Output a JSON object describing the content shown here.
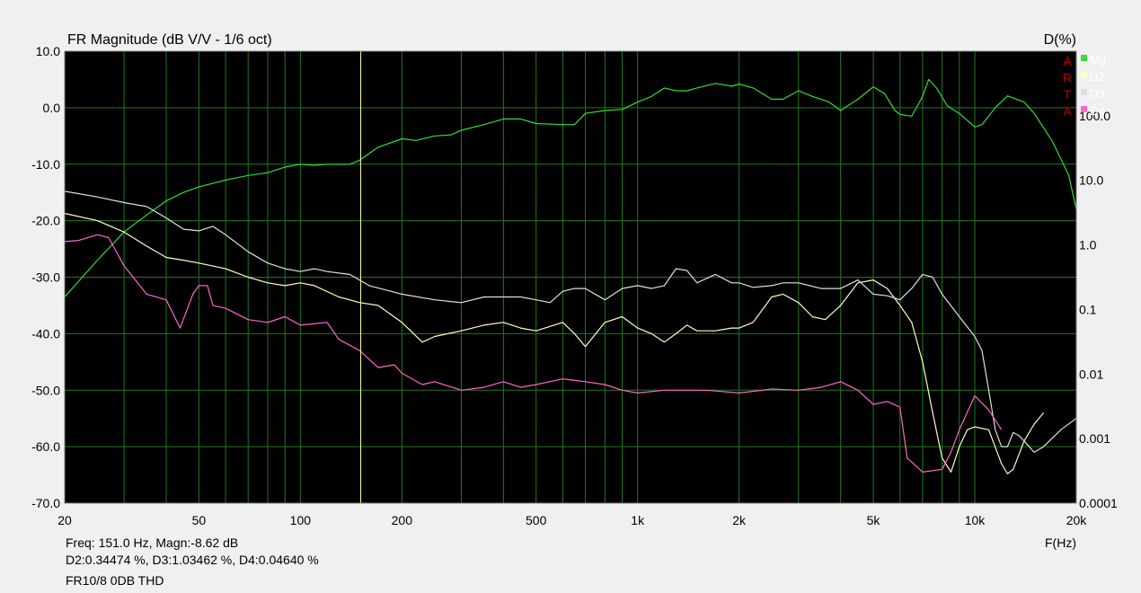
{
  "chart_data": {
    "type": "line",
    "title": "FR Magnitude (dB V/V - 1/6 oct)",
    "right_axis_label": "D(%)",
    "xlabel": "F(Hz)",
    "x_scale": "log",
    "xlim": [
      20,
      20000
    ],
    "ylim_left": [
      -70,
      10
    ],
    "ylim_right": [
      0.0001,
      1000
    ],
    "y_right_scale": "log",
    "x_ticks": [
      {
        "value": 20,
        "label": "20"
      },
      {
        "value": 50,
        "label": "50"
      },
      {
        "value": 100,
        "label": "100"
      },
      {
        "value": 200,
        "label": "200"
      },
      {
        "value": 500,
        "label": "500"
      },
      {
        "value": 1000,
        "label": "1k"
      },
      {
        "value": 2000,
        "label": "2k"
      },
      {
        "value": 5000,
        "label": "5k"
      },
      {
        "value": 10000,
        "label": "10k"
      },
      {
        "value": 20000,
        "label": "20k"
      }
    ],
    "y_left_ticks": [
      {
        "value": 10,
        "label": "10.0"
      },
      {
        "value": 0,
        "label": "0.0"
      },
      {
        "value": -10,
        "label": "-10.0"
      },
      {
        "value": -20,
        "label": "-20.0"
      },
      {
        "value": -30,
        "label": "-30.0"
      },
      {
        "value": -40,
        "label": "-40.0"
      },
      {
        "value": -50,
        "label": "-50.0"
      },
      {
        "value": -60,
        "label": "-60.0"
      },
      {
        "value": -70,
        "label": "-70.0"
      }
    ],
    "y_right_ticks": [
      {
        "value": 100,
        "label": "100.0"
      },
      {
        "value": 10,
        "label": "10.0"
      },
      {
        "value": 1,
        "label": "1.0"
      },
      {
        "value": 0.1,
        "label": "0.1"
      },
      {
        "value": 0.01,
        "label": "0.01"
      },
      {
        "value": 0.001,
        "label": "0.001"
      },
      {
        "value": 0.0001,
        "label": "0.0001"
      }
    ],
    "cursor_freq": 151,
    "grid": true,
    "background": "#000000",
    "grid_color": "#1f7a1f",
    "legend_placement": "top-right",
    "arta_logo": [
      "A",
      "R",
      "T",
      "A"
    ],
    "series": [
      {
        "name": "Mg",
        "color": "#33dd33",
        "points": [
          [
            20,
            -33.5
          ],
          [
            25,
            -27
          ],
          [
            30,
            -22
          ],
          [
            35,
            -19
          ],
          [
            40,
            -16.5
          ],
          [
            45,
            -15
          ],
          [
            50,
            -14
          ],
          [
            60,
            -12.8
          ],
          [
            70,
            -12
          ],
          [
            80,
            -11.5
          ],
          [
            90,
            -10.5
          ],
          [
            100,
            -10
          ],
          [
            110,
            -10.2
          ],
          [
            120,
            -10
          ],
          [
            140,
            -10
          ],
          [
            150,
            -9.3
          ],
          [
            170,
            -7
          ],
          [
            200,
            -5.5
          ],
          [
            220,
            -5.8
          ],
          [
            250,
            -5
          ],
          [
            280,
            -4.8
          ],
          [
            300,
            -4
          ],
          [
            350,
            -3
          ],
          [
            400,
            -2
          ],
          [
            450,
            -2
          ],
          [
            500,
            -2.8
          ],
          [
            600,
            -3
          ],
          [
            650,
            -3
          ],
          [
            700,
            -1
          ],
          [
            800,
            -0.5
          ],
          [
            900,
            -0.3
          ],
          [
            1000,
            1
          ],
          [
            1100,
            2
          ],
          [
            1200,
            3.5
          ],
          [
            1300,
            3
          ],
          [
            1400,
            3
          ],
          [
            1500,
            3.5
          ],
          [
            1700,
            4.3
          ],
          [
            1900,
            3.8
          ],
          [
            2000,
            4.2
          ],
          [
            2200,
            3.5
          ],
          [
            2500,
            1.5
          ],
          [
            2700,
            1.5
          ],
          [
            3000,
            3
          ],
          [
            3300,
            2
          ],
          [
            3700,
            1
          ],
          [
            4000,
            -0.5
          ],
          [
            4500,
            1.5
          ],
          [
            5000,
            3.7
          ],
          [
            5400,
            2.5
          ],
          [
            5800,
            -0.5
          ],
          [
            6000,
            -1.2
          ],
          [
            6500,
            -1.5
          ],
          [
            7000,
            2
          ],
          [
            7300,
            5
          ],
          [
            7700,
            3.5
          ],
          [
            8300,
            0.3
          ],
          [
            9000,
            -1
          ],
          [
            10000,
            -3.4
          ],
          [
            10500,
            -3
          ],
          [
            11500,
            0
          ],
          [
            12500,
            2.1
          ],
          [
            14000,
            1
          ],
          [
            15000,
            -1
          ],
          [
            17000,
            -6
          ],
          [
            19000,
            -12
          ],
          [
            20000,
            -18
          ]
        ]
      },
      {
        "name": "D2",
        "color": "#ffffc0",
        "points": [
          [
            20,
            -18.7
          ],
          [
            25,
            -20
          ],
          [
            30,
            -22
          ],
          [
            35,
            -24.5
          ],
          [
            40,
            -26.5
          ],
          [
            45,
            -27
          ],
          [
            50,
            -27.5
          ],
          [
            60,
            -28.5
          ],
          [
            70,
            -30
          ],
          [
            80,
            -31
          ],
          [
            90,
            -31.5
          ],
          [
            100,
            -31
          ],
          [
            110,
            -31.5
          ],
          [
            130,
            -33.5
          ],
          [
            150,
            -34.5
          ],
          [
            170,
            -35
          ],
          [
            200,
            -38
          ],
          [
            230,
            -41.5
          ],
          [
            250,
            -40.5
          ],
          [
            300,
            -39.5
          ],
          [
            350,
            -38.5
          ],
          [
            400,
            -38
          ],
          [
            450,
            -39
          ],
          [
            500,
            -39.5
          ],
          [
            600,
            -38
          ],
          [
            650,
            -40
          ],
          [
            700,
            -42.3
          ],
          [
            800,
            -38
          ],
          [
            900,
            -37
          ],
          [
            1000,
            -39
          ],
          [
            1100,
            -40
          ],
          [
            1200,
            -41.5
          ],
          [
            1300,
            -40
          ],
          [
            1400,
            -38.5
          ],
          [
            1500,
            -39.5
          ],
          [
            1700,
            -39.5
          ],
          [
            1900,
            -39
          ],
          [
            2000,
            -39
          ],
          [
            2200,
            -38
          ],
          [
            2500,
            -33.5
          ],
          [
            2700,
            -33
          ],
          [
            3000,
            -34.5
          ],
          [
            3300,
            -37
          ],
          [
            3600,
            -37.5
          ],
          [
            4000,
            -35
          ],
          [
            4500,
            -31
          ],
          [
            5000,
            -30.5
          ],
          [
            5500,
            -32
          ],
          [
            6000,
            -35
          ],
          [
            6500,
            -38
          ],
          [
            7000,
            -45
          ],
          [
            7500,
            -54
          ],
          [
            8000,
            -62
          ],
          [
            8500,
            -64.5
          ],
          [
            9000,
            -60
          ],
          [
            9500,
            -57
          ],
          [
            10000,
            -56.5
          ],
          [
            11000,
            -57
          ],
          [
            12000,
            -63
          ],
          [
            12500,
            -64.8
          ],
          [
            13000,
            -64
          ],
          [
            14000,
            -59
          ],
          [
            15000,
            -56
          ],
          [
            16000,
            -54
          ]
        ]
      },
      {
        "name": "D3",
        "color": "#e0e0e0",
        "points": [
          [
            20,
            -14.8
          ],
          [
            25,
            -15.8
          ],
          [
            30,
            -16.8
          ],
          [
            35,
            -17.5
          ],
          [
            40,
            -19.5
          ],
          [
            45,
            -21.5
          ],
          [
            50,
            -21.8
          ],
          [
            55,
            -21
          ],
          [
            60,
            -22.5
          ],
          [
            70,
            -25.5
          ],
          [
            80,
            -27.5
          ],
          [
            90,
            -28.5
          ],
          [
            100,
            -29
          ],
          [
            110,
            -28.5
          ],
          [
            120,
            -29
          ],
          [
            140,
            -29.5
          ],
          [
            160,
            -31.5
          ],
          [
            200,
            -33
          ],
          [
            250,
            -34
          ],
          [
            300,
            -34.5
          ],
          [
            350,
            -33.5
          ],
          [
            400,
            -33.5
          ],
          [
            450,
            -33.5
          ],
          [
            500,
            -34
          ],
          [
            550,
            -34.5
          ],
          [
            600,
            -32.5
          ],
          [
            650,
            -32
          ],
          [
            700,
            -32
          ],
          [
            800,
            -34
          ],
          [
            900,
            -32
          ],
          [
            1000,
            -31.5
          ],
          [
            1100,
            -32
          ],
          [
            1200,
            -31.5
          ],
          [
            1300,
            -28.5
          ],
          [
            1400,
            -28.8
          ],
          [
            1500,
            -31
          ],
          [
            1700,
            -29.5
          ],
          [
            1900,
            -31
          ],
          [
            2000,
            -31
          ],
          [
            2200,
            -31.8
          ],
          [
            2500,
            -31.5
          ],
          [
            2700,
            -31
          ],
          [
            3000,
            -31
          ],
          [
            3500,
            -32
          ],
          [
            4000,
            -32
          ],
          [
            4500,
            -30.5
          ],
          [
            5000,
            -33
          ],
          [
            5500,
            -33.3
          ],
          [
            6000,
            -34
          ],
          [
            6500,
            -32
          ],
          [
            7000,
            -29.5
          ],
          [
            7500,
            -30
          ],
          [
            8000,
            -33
          ],
          [
            9000,
            -37
          ],
          [
            10000,
            -40.5
          ],
          [
            10500,
            -43
          ],
          [
            11000,
            -50
          ],
          [
            11500,
            -57
          ],
          [
            12000,
            -60
          ],
          [
            12500,
            -60
          ],
          [
            13000,
            -57.5
          ],
          [
            13500,
            -58
          ],
          [
            14000,
            -59
          ],
          [
            15000,
            -61
          ],
          [
            16000,
            -60
          ],
          [
            18000,
            -57
          ],
          [
            20000,
            -55
          ]
        ]
      },
      {
        "name": "D4",
        "color": "#ff66cc",
        "points": [
          [
            20,
            -23.7
          ],
          [
            22,
            -23.5
          ],
          [
            25,
            -22.5
          ],
          [
            27,
            -23
          ],
          [
            30,
            -28
          ],
          [
            35,
            -33
          ],
          [
            40,
            -34
          ],
          [
            44,
            -39
          ],
          [
            48,
            -33
          ],
          [
            50,
            -31.5
          ],
          [
            53,
            -31.5
          ],
          [
            55,
            -35
          ],
          [
            60,
            -35.5
          ],
          [
            70,
            -37.5
          ],
          [
            80,
            -38
          ],
          [
            90,
            -37
          ],
          [
            100,
            -38.5
          ],
          [
            120,
            -38
          ],
          [
            130,
            -41
          ],
          [
            150,
            -43
          ],
          [
            170,
            -46
          ],
          [
            190,
            -45.5
          ],
          [
            200,
            -47
          ],
          [
            230,
            -49
          ],
          [
            250,
            -48.5
          ],
          [
            300,
            -50
          ],
          [
            350,
            -49.5
          ],
          [
            400,
            -48.5
          ],
          [
            450,
            -49.5
          ],
          [
            500,
            -49
          ],
          [
            600,
            -48
          ],
          [
            700,
            -48.5
          ],
          [
            800,
            -49
          ],
          [
            900,
            -50
          ],
          [
            1000,
            -50.5
          ],
          [
            1200,
            -50
          ],
          [
            1400,
            -50
          ],
          [
            1600,
            -50
          ],
          [
            2000,
            -50.5
          ],
          [
            2500,
            -49.8
          ],
          [
            3000,
            -50
          ],
          [
            3500,
            -49.5
          ],
          [
            4000,
            -48.5
          ],
          [
            4500,
            -50
          ],
          [
            5000,
            -52.5
          ],
          [
            5500,
            -52
          ],
          [
            6000,
            -53
          ],
          [
            6300,
            -62
          ],
          [
            7000,
            -64.5
          ],
          [
            8000,
            -64
          ],
          [
            8500,
            -61
          ],
          [
            9000,
            -57
          ],
          [
            10000,
            -51
          ],
          [
            11000,
            -53.5
          ],
          [
            12000,
            -57
          ]
        ]
      }
    ]
  },
  "readout": {
    "line1_left": "Freq: 151.0 Hz, Magn:-8.62 dB",
    "line2": "D2:0.34474 %, D3:1.03462 %, D4:0.04640 %",
    "line3": "FR10/8 0DB THD"
  }
}
